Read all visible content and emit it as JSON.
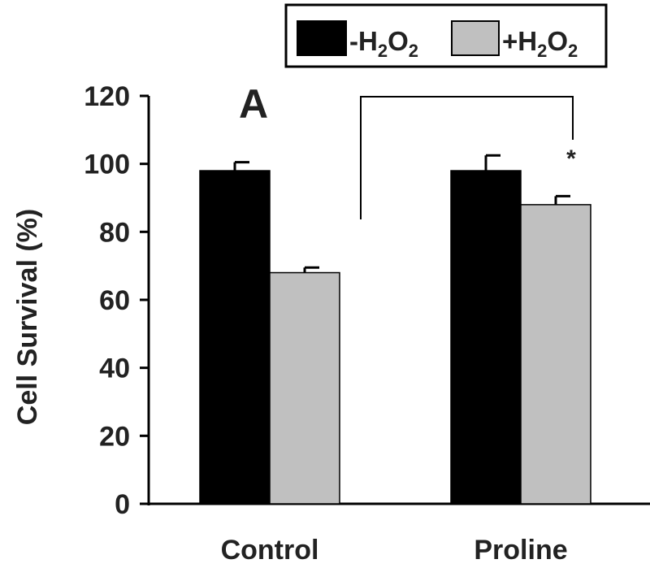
{
  "chart_data": {
    "type": "bar",
    "panel_label": "A",
    "categories": [
      "Control",
      "Proline"
    ],
    "series": [
      {
        "name": "-H2O2",
        "name_base": "-H",
        "name_sub1": "2",
        "name_mid": "O",
        "name_sub2": "2",
        "values": [
          98,
          98
        ],
        "errors": [
          2.5,
          4.5
        ],
        "color": "#000000"
      },
      {
        "name": "+H2O2",
        "name_base": "+H",
        "name_sub1": "2",
        "name_mid": "O",
        "name_sub2": "2",
        "values": [
          68,
          88
        ],
        "errors": [
          1.5,
          2.5
        ],
        "color": "#c0c0c0"
      }
    ],
    "ylabel": "Cell Survival (%)",
    "xlabel": "",
    "ylim": [
      0,
      120
    ],
    "yticks": [
      "0",
      "20",
      "40",
      "60",
      "80",
      "100",
      "120"
    ],
    "grid": false,
    "legend_position": "top-right",
    "significance": {
      "from_category": "Control",
      "to_category": "Proline",
      "series": "+H2O2",
      "mark": "*"
    }
  }
}
